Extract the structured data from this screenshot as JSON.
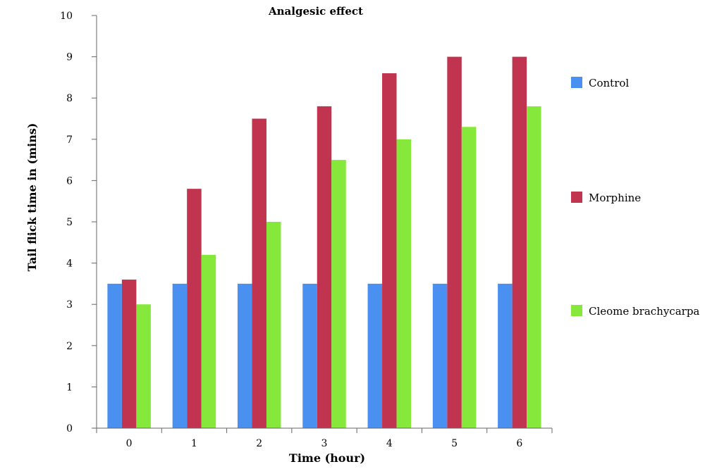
{
  "chart_data": {
    "type": "bar",
    "title": "Analgesic effect",
    "xlabel": "Time (hour)",
    "ylabel": "Tail flick time in  (mins)",
    "categories": [
      "0",
      "1",
      "2",
      "3",
      "4",
      "5",
      "6"
    ],
    "ylim": [
      0,
      10
    ],
    "yticks": [
      "0",
      "1",
      "2",
      "3",
      "4",
      "5",
      "6",
      "7",
      "8",
      "9",
      "10"
    ],
    "grid": false,
    "legend_position": "right",
    "series": [
      {
        "name": "Control",
        "color": "#4a90f0",
        "values": [
          3.5,
          3.5,
          3.5,
          3.5,
          3.5,
          3.5,
          3.5
        ]
      },
      {
        "name": "Morphine",
        "color": "#c0344f",
        "values": [
          3.6,
          5.8,
          7.5,
          7.8,
          8.6,
          9.0,
          9.0
        ]
      },
      {
        "name": "Cleome brachycarpa",
        "color": "#86e83a",
        "values": [
          3.0,
          4.2,
          5.0,
          6.5,
          7.0,
          7.3,
          7.8
        ]
      }
    ]
  }
}
